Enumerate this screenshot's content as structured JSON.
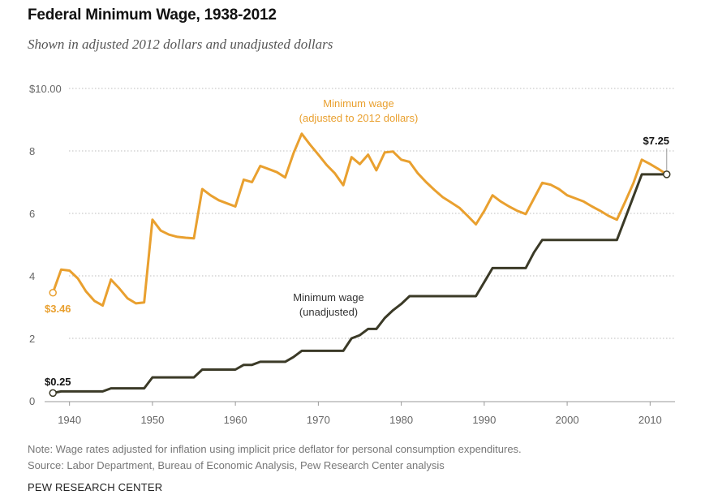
{
  "title": "Federal Minimum Wage, 1938-2012",
  "subtitle": "Shown in adjusted 2012 dollars and unadjusted dollars",
  "note": "Note: Wage rates adjusted for inflation using implicit price deflator for personal consumption expenditures.",
  "source": "Source: Labor Department, Bureau of Economic Analysis, Pew Research Center analysis",
  "brand": "PEW RESEARCH CENTER",
  "colors": {
    "adjusted": "#E9A02F",
    "unadjusted": "#3B3A27",
    "grid": "#BDBDBD",
    "axis_text": "#666666"
  },
  "chart_data": {
    "type": "line",
    "title": "Federal Minimum Wage, 1938-2012",
    "xlabel": "",
    "ylabel": "",
    "xlim": [
      1937,
      2013
    ],
    "ylim": [
      0,
      10
    ],
    "x_ticks": [
      1940,
      1950,
      1960,
      1970,
      1980,
      1990,
      2000,
      2010
    ],
    "x_tick_labels": [
      "1940",
      "1950",
      "1960",
      "1970",
      "1980",
      "1990",
      "2000",
      "2010"
    ],
    "y_ticks": [
      0,
      2,
      4,
      6,
      8,
      10
    ],
    "y_tick_labels": [
      "0",
      "2",
      "4",
      "6",
      "8",
      "$10.00"
    ],
    "grid": true,
    "series": [
      {
        "name": "Minimum wage (adjusted to 2012 dollars)",
        "label_lines": [
          "Minimum wage",
          "(adjusted to 2012 dollars)"
        ],
        "start_label": "$3.46",
        "x": [
          1938,
          1939,
          1940,
          1941,
          1942,
          1943,
          1944,
          1945,
          1946,
          1947,
          1948,
          1949,
          1950,
          1951,
          1952,
          1953,
          1954,
          1955,
          1956,
          1957,
          1958,
          1959,
          1960,
          1961,
          1962,
          1963,
          1964,
          1965,
          1966,
          1967,
          1968,
          1969,
          1970,
          1971,
          1972,
          1973,
          1974,
          1975,
          1976,
          1977,
          1978,
          1979,
          1980,
          1981,
          1982,
          1983,
          1984,
          1985,
          1986,
          1987,
          1988,
          1989,
          1990,
          1991,
          1992,
          1993,
          1994,
          1995,
          1996,
          1997,
          1998,
          1999,
          2000,
          2001,
          2002,
          2003,
          2004,
          2005,
          2006,
          2007,
          2008,
          2009,
          2010,
          2011,
          2012
        ],
        "values": [
          3.46,
          4.2,
          4.17,
          3.92,
          3.5,
          3.2,
          3.05,
          3.88,
          3.6,
          3.28,
          3.12,
          3.15,
          5.8,
          5.45,
          5.32,
          5.25,
          5.22,
          5.2,
          6.78,
          6.58,
          6.42,
          6.32,
          6.22,
          7.08,
          7.0,
          7.52,
          7.42,
          7.32,
          7.15,
          7.92,
          8.55,
          8.2,
          7.88,
          7.55,
          7.28,
          6.9,
          7.8,
          7.58,
          7.88,
          7.38,
          7.95,
          7.98,
          7.72,
          7.65,
          7.28,
          7.0,
          6.75,
          6.52,
          6.35,
          6.18,
          5.92,
          5.65,
          6.08,
          6.58,
          6.38,
          6.22,
          6.08,
          5.98,
          6.48,
          6.98,
          6.92,
          6.78,
          6.58,
          6.48,
          6.38,
          6.22,
          6.08,
          5.92,
          5.8,
          6.38,
          6.98,
          7.72,
          7.58,
          7.42,
          7.25
        ]
      },
      {
        "name": "Minimum wage (unadjusted)",
        "label_lines": [
          "Minimum wage",
          "(unadjusted)"
        ],
        "start_label": "$0.25",
        "end_label": "$7.25",
        "step": true,
        "x": [
          1938,
          1939,
          1940,
          1941,
          1942,
          1943,
          1944,
          1945,
          1946,
          1947,
          1948,
          1949,
          1950,
          1951,
          1952,
          1953,
          1954,
          1955,
          1956,
          1957,
          1958,
          1959,
          1960,
          1961,
          1962,
          1963,
          1964,
          1965,
          1966,
          1967,
          1968,
          1969,
          1970,
          1971,
          1972,
          1973,
          1974,
          1975,
          1976,
          1977,
          1978,
          1979,
          1980,
          1981,
          1982,
          1983,
          1984,
          1985,
          1986,
          1987,
          1988,
          1989,
          1990,
          1991,
          1992,
          1993,
          1994,
          1995,
          1996,
          1997,
          1998,
          1999,
          2000,
          2001,
          2002,
          2003,
          2004,
          2005,
          2006,
          2007,
          2008,
          2009,
          2010,
          2011,
          2012
        ],
        "values": [
          0.25,
          0.3,
          0.3,
          0.3,
          0.3,
          0.3,
          0.3,
          0.4,
          0.4,
          0.4,
          0.4,
          0.4,
          0.75,
          0.75,
          0.75,
          0.75,
          0.75,
          0.75,
          1.0,
          1.0,
          1.0,
          1.0,
          1.0,
          1.15,
          1.15,
          1.25,
          1.25,
          1.25,
          1.25,
          1.4,
          1.6,
          1.6,
          1.6,
          1.6,
          1.6,
          1.6,
          2.0,
          2.1,
          2.3,
          2.3,
          2.65,
          2.9,
          3.1,
          3.35,
          3.35,
          3.35,
          3.35,
          3.35,
          3.35,
          3.35,
          3.35,
          3.35,
          3.8,
          4.25,
          4.25,
          4.25,
          4.25,
          4.25,
          4.75,
          5.15,
          5.15,
          5.15,
          5.15,
          5.15,
          5.15,
          5.15,
          5.15,
          5.15,
          5.15,
          5.85,
          6.55,
          7.25,
          7.25,
          7.25,
          7.25
        ]
      }
    ]
  }
}
